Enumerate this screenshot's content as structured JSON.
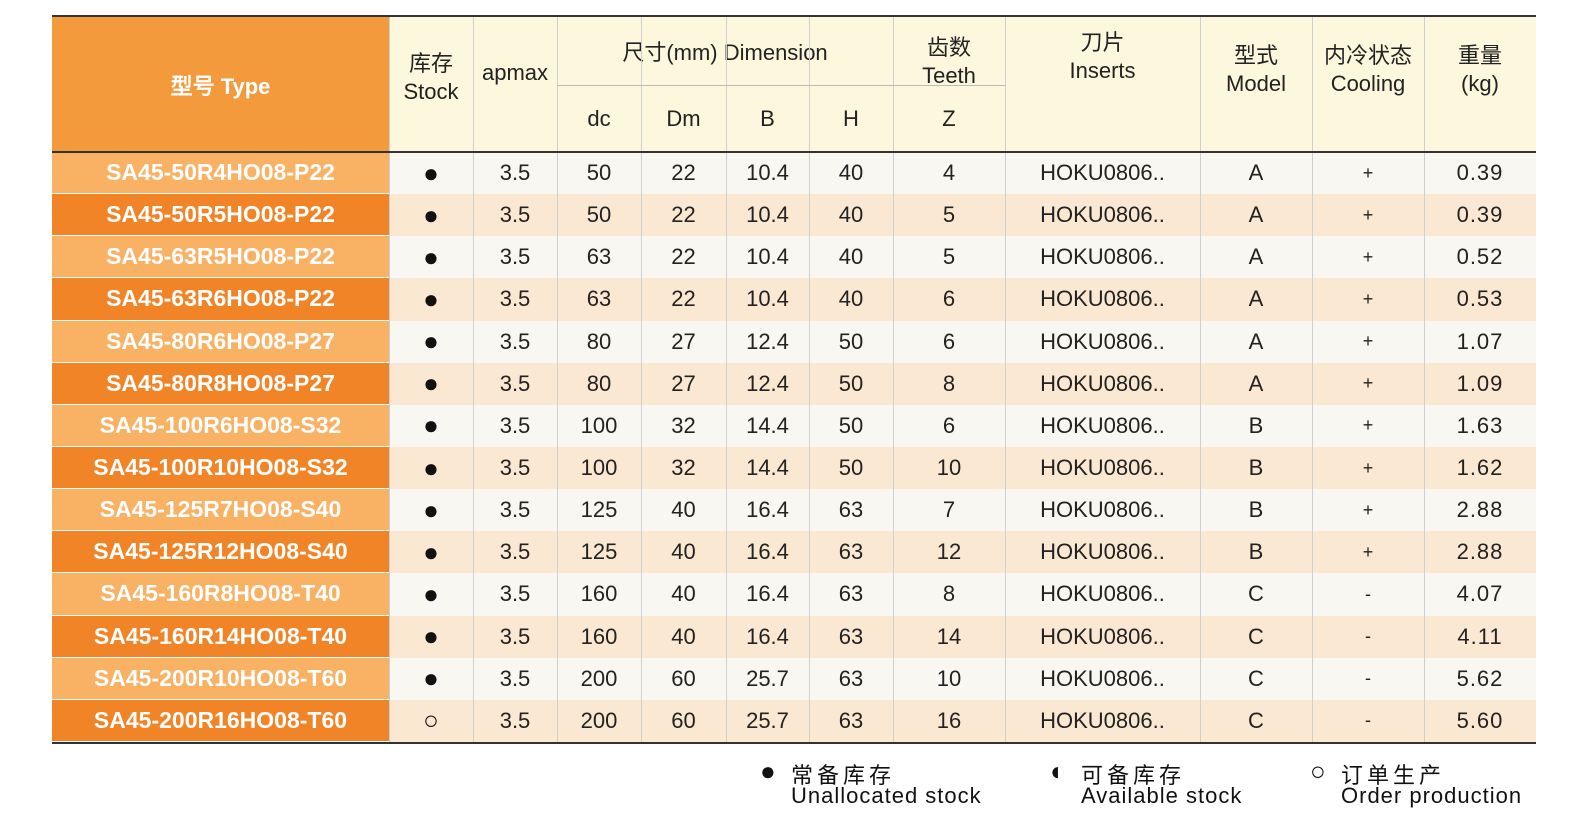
{
  "table": {
    "header": {
      "type": "型号 Type",
      "stock": [
        "库存",
        "Stock"
      ],
      "apmax": "apmax",
      "dimension": "尺寸(mm) Dimension",
      "dims": [
        "dc",
        "Dm",
        "B",
        "H"
      ],
      "teeth": [
        "齿数",
        "Teeth",
        "Z"
      ],
      "inserts": [
        "刀片",
        "Inserts"
      ],
      "model": [
        "型式",
        "Model"
      ],
      "cooling": [
        "内冷状态",
        "Cooling"
      ],
      "weight": [
        "重量",
        "(kg)"
      ]
    },
    "rows": [
      [
        "SA45-50R4HO08-P22",
        "●",
        "3.5",
        "50",
        "22",
        "10.4",
        "40",
        "4",
        "HOKU0806..",
        "A",
        "+",
        "0.39"
      ],
      [
        "SA45-50R5HO08-P22",
        "●",
        "3.5",
        "50",
        "22",
        "10.4",
        "40",
        "5",
        "HOKU0806..",
        "A",
        "+",
        "0.39"
      ],
      [
        "SA45-63R5HO08-P22",
        "●",
        "3.5",
        "63",
        "22",
        "10.4",
        "40",
        "5",
        "HOKU0806..",
        "A",
        "+",
        "0.52"
      ],
      [
        "SA45-63R6HO08-P22",
        "●",
        "3.5",
        "63",
        "22",
        "10.4",
        "40",
        "6",
        "HOKU0806..",
        "A",
        "+",
        "0.53"
      ],
      [
        "SA45-80R6HO08-P27",
        "●",
        "3.5",
        "80",
        "27",
        "12.4",
        "50",
        "6",
        "HOKU0806..",
        "A",
        "+",
        "1.07"
      ],
      [
        "SA45-80R8HO08-P27",
        "●",
        "3.5",
        "80",
        "27",
        "12.4",
        "50",
        "8",
        "HOKU0806..",
        "A",
        "+",
        "1.09"
      ],
      [
        "SA45-100R6HO08-S32",
        "●",
        "3.5",
        "100",
        "32",
        "14.4",
        "50",
        "6",
        "HOKU0806..",
        "B",
        "+",
        "1.63"
      ],
      [
        "SA45-100R10HO08-S32",
        "●",
        "3.5",
        "100",
        "32",
        "14.4",
        "50",
        "10",
        "HOKU0806..",
        "B",
        "+",
        "1.62"
      ],
      [
        "SA45-125R7HO08-S40",
        "●",
        "3.5",
        "125",
        "40",
        "16.4",
        "63",
        "7",
        "HOKU0806..",
        "B",
        "+",
        "2.88"
      ],
      [
        "SA45-125R12HO08-S40",
        "●",
        "3.5",
        "125",
        "40",
        "16.4",
        "63",
        "12",
        "HOKU0806..",
        "B",
        "+",
        "2.88"
      ],
      [
        "SA45-160R8HO08-T40",
        "●",
        "3.5",
        "160",
        "40",
        "16.4",
        "63",
        "8",
        "HOKU0806..",
        "C",
        "-",
        "4.07"
      ],
      [
        "SA45-160R14HO08-T40",
        "●",
        "3.5",
        "160",
        "40",
        "16.4",
        "63",
        "14",
        "HOKU0806..",
        "C",
        "-",
        "4.11"
      ],
      [
        "SA45-200R10HO08-T60",
        "●",
        "3.5",
        "200",
        "60",
        "25.7",
        "63",
        "10",
        "HOKU0806..",
        "C",
        "-",
        "5.62"
      ],
      [
        "SA45-200R16HO08-T60",
        "○",
        "3.5",
        "200",
        "60",
        "25.7",
        "63",
        "16",
        "HOKU0806..",
        "C",
        "-",
        "5.60"
      ]
    ]
  },
  "legend": [
    {
      "symbol": "●",
      "cn": "常备库存",
      "en": "Unallocated stock"
    },
    {
      "symbol": "◐",
      "cn": "可备库存",
      "en": "Available stock"
    },
    {
      "symbol": "○",
      "cn": "订单生产",
      "en": "Order production"
    }
  ]
}
